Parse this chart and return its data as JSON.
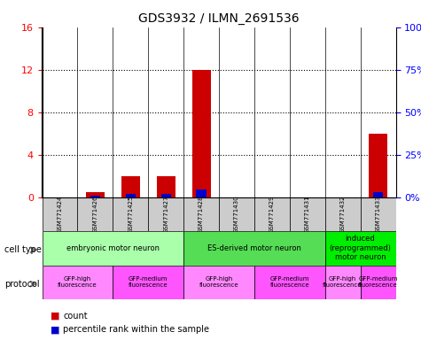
{
  "title": "GDS3932 / ILMN_2691536",
  "samples": [
    "GSM771424",
    "GSM771426",
    "GSM771425",
    "GSM771427",
    "GSM771428",
    "GSM771430",
    "GSM771429",
    "GSM771431",
    "GSM771432",
    "GSM771433"
  ],
  "red_values": [
    0,
    0.5,
    2.0,
    2.0,
    12.0,
    0,
    0,
    0,
    0,
    6.0
  ],
  "blue_values": [
    0,
    1.0,
    2.0,
    2.0,
    4.5,
    0,
    0,
    0,
    0,
    3.0
  ],
  "ylim_left": [
    0,
    16
  ],
  "ylim_right": [
    0,
    100
  ],
  "left_ticks": [
    0,
    4,
    8,
    12,
    16
  ],
  "right_ticks": [
    0,
    25,
    50,
    75,
    100
  ],
  "left_tick_labels": [
    "0",
    "4",
    "8",
    "12",
    "16"
  ],
  "right_tick_labels": [
    "0%",
    "25%",
    "50%",
    "75%",
    "100%"
  ],
  "cell_type_groups": [
    {
      "label": "embryonic motor neuron",
      "start": 0,
      "end": 3,
      "color": "#aaffaa"
    },
    {
      "label": "ES-derived motor neuron",
      "start": 4,
      "end": 7,
      "color": "#55dd55"
    },
    {
      "label": "induced\n(reprogrammed)\nmotor neuron",
      "start": 8,
      "end": 9,
      "color": "#00ee00"
    }
  ],
  "protocol_groups": [
    {
      "label": "GFP-high\nfluorescence",
      "start": 0,
      "end": 1,
      "color": "#ff88ff"
    },
    {
      "label": "GFP-medium\nfluorescence",
      "start": 2,
      "end": 3,
      "color": "#ff55ff"
    },
    {
      "label": "GFP-high\nfluorescence",
      "start": 4,
      "end": 5,
      "color": "#ff88ff"
    },
    {
      "label": "GFP-medium\nfluorescence",
      "start": 6,
      "end": 7,
      "color": "#ff55ff"
    },
    {
      "label": "GFP-high\nfluorescence",
      "start": 8,
      "end": 8,
      "color": "#ff88ff"
    },
    {
      "label": "GFP-medium\nfluorescence",
      "start": 9,
      "end": 9,
      "color": "#ff55ff"
    }
  ],
  "bar_color_red": "#cc0000",
  "bar_color_blue": "#0000cc",
  "bar_width": 0.35,
  "sample_bg_color": "#cccccc",
  "legend_items": [
    {
      "color": "#cc0000",
      "label": "count"
    },
    {
      "color": "#0000cc",
      "label": "percentile rank within the sample"
    }
  ]
}
